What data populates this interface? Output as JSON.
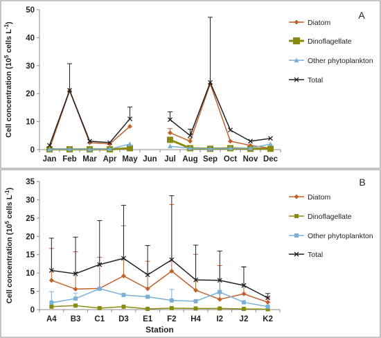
{
  "chart_data": [
    {
      "panel_label": "A",
      "type": "line",
      "categories": [
        "Jan",
        "Feb",
        "Mar",
        "Apr",
        "May",
        "Jun",
        "Jul",
        "Aug",
        "Sep",
        "Oct",
        "Nov",
        "Dec"
      ],
      "ylabel_main": "Cell concentration (10",
      "ylabel_sup": "5",
      "ylabel_tail": " cells L",
      "ylabel_sup2": "-1",
      "ylabel_end": ")",
      "xlabel": "",
      "ylim": [
        0,
        50
      ],
      "yticks": [
        0,
        10,
        20,
        30,
        40,
        50
      ],
      "grid": false,
      "legend_position": "right",
      "series": [
        {
          "name": "Diatom",
          "color": "#c0602a",
          "marker": "diamond",
          "values": [
            0.3,
            21,
            2.5,
            2,
            8.3,
            null,
            6,
            3,
            23.5,
            3,
            1.5,
            0.5
          ],
          "errors": [
            0,
            0,
            0,
            0,
            0,
            null,
            1.5,
            1,
            0,
            0,
            0,
            0
          ]
        },
        {
          "name": "Dinoflagellate",
          "color": "#8a8a10",
          "marker": "square",
          "values": [
            0.1,
            0.1,
            0.1,
            0.1,
            0.5,
            null,
            3.5,
            0.5,
            0.3,
            0.5,
            0.3,
            0.3
          ],
          "errors": [
            0,
            0,
            0,
            0,
            0,
            null,
            0,
            0,
            0,
            0,
            0,
            0
          ]
        },
        {
          "name": "Other phytoplankton",
          "color": "#7ab0d8",
          "marker": "triangle",
          "values": [
            0.1,
            0.2,
            0.1,
            0.2,
            2,
            null,
            1.2,
            0.5,
            0.3,
            0.5,
            0.5,
            2
          ],
          "errors": [
            0,
            0,
            0,
            0,
            0,
            null,
            0,
            0,
            0,
            0,
            0,
            0
          ]
        },
        {
          "name": "Total",
          "color": "#202020",
          "marker": "x",
          "values": [
            1.5,
            21.2,
            3,
            2.5,
            11,
            null,
            10.7,
            5,
            24,
            7,
            3,
            4
          ],
          "errors": [
            0,
            9.5,
            0,
            0,
            4.2,
            null,
            2.8,
            2.3,
            23.3,
            0,
            0,
            0
          ]
        }
      ]
    },
    {
      "panel_label": "B",
      "type": "line",
      "categories": [
        "A4",
        "B3",
        "C1",
        "D3",
        "E1",
        "F2",
        "H4",
        "I2",
        "J2",
        "K2"
      ],
      "xlabel": "Station",
      "ylabel_main": "Cell concentration (10",
      "ylabel_sup": "5",
      "ylabel_tail": " cells L",
      "ylabel_sup2": "-1",
      "ylabel_end": ")",
      "ylim": [
        0,
        35
      ],
      "yticks": [
        0,
        5,
        10,
        15,
        20,
        25,
        30,
        35
      ],
      "grid": false,
      "legend_position": "right",
      "series": [
        {
          "name": "Diatom",
          "color": "#c0602a",
          "marker": "diamond",
          "values": [
            8,
            5.6,
            5.8,
            9.2,
            5.7,
            10.5,
            5.3,
            2.8,
            4.3,
            2
          ],
          "errors": [
            8.7,
            10.2,
            8.5,
            13.7,
            7.5,
            18.2,
            9.8,
            9.2,
            7.3,
            1.2
          ]
        },
        {
          "name": "Dinoflagellate",
          "color": "#8a8a10",
          "marker": "square",
          "values": [
            0.8,
            1.1,
            0.4,
            0.8,
            0.2,
            0.4,
            0.3,
            0.3,
            0.2,
            0.1
          ],
          "errors": [
            0,
            0,
            0,
            0,
            0,
            0,
            0,
            0,
            0,
            0
          ]
        },
        {
          "name": "Other phytoplankton",
          "color": "#7ab0d8",
          "marker": "square",
          "values": [
            1.9,
            3,
            5.7,
            4,
            3.5,
            2.5,
            2.3,
            4.8,
            2,
            0.8
          ],
          "errors": [
            3,
            1.5,
            0,
            0,
            0,
            3,
            0,
            0,
            0,
            0
          ]
        },
        {
          "name": "Total",
          "color": "#202020",
          "marker": "x",
          "values": [
            10.7,
            9.8,
            12.3,
            14,
            9.5,
            13.6,
            8.1,
            8,
            6.6,
            3.2
          ],
          "errors": [
            8.8,
            10,
            12,
            14.5,
            8,
            17.5,
            9.5,
            8,
            5.1,
            1.2
          ]
        }
      ]
    }
  ]
}
